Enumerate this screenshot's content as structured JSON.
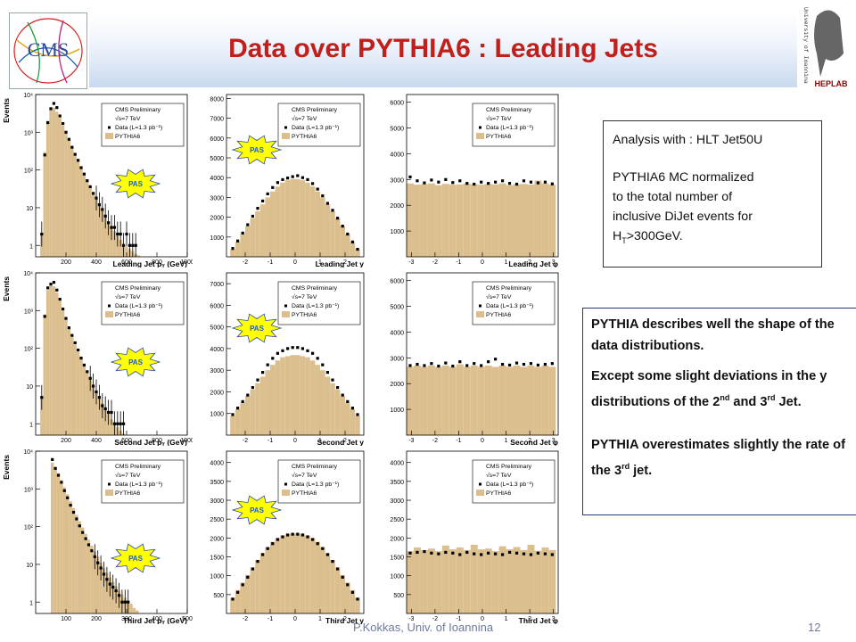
{
  "slide": {
    "title": "Data over PYTHIA6 : Leading Jets",
    "footer": "P.Kokkas, Univ. of Ioannina",
    "page_number": "12",
    "logo_left_text": "CMS",
    "logo_right_text": "HEPLAB",
    "logo_right_caption": "University of Ioannina"
  },
  "notes": {
    "box1_line1": "Analysis with : HLT Jet50U",
    "box1_line2": "PYTHIA6 MC normalized",
    "box1_line3": "to the total number of",
    "box1_line4": "inclusive DiJet events for",
    "box1_line5_pre": "H",
    "box1_line5_sub": "T",
    "box1_line5_post": ">300GeV.",
    "box2_p1": "PYTHIA describes well the shape of the data distributions.",
    "box2_p2_a": "Except some slight deviations in the y distributions of the 2",
    "box2_p2_sup1": "nd",
    "box2_p2_b": " and 3",
    "box2_p2_sup2": "rd",
    "box2_p2_c": " Jet.",
    "box2_p3_a": "PYTHIA overestimates slightly the rate of the 3",
    "box2_p3_sup": "rd",
    "box2_p3_b": " jet."
  },
  "legend": {
    "header": "CMS Preliminary",
    "energy": "√s=7 TeV",
    "data": "Data (L=1.3 pb⁻¹)",
    "mc": "PYTHIA6"
  },
  "badge": "PAS",
  "colors": {
    "mc_fill": "#dcbf8f",
    "data": "#000000",
    "badge": "#ffff00",
    "badge_text": "#1a5fbf",
    "title": "#c0201c"
  },
  "chart_data": [
    {
      "id": "pt1",
      "type": "bar",
      "ylabel": "Events",
      "xlabel": "Leading Jet p",
      "xlabel_sub": "T",
      "xlabel_unit": " (GeV)",
      "log": true,
      "xlim": [
        0,
        1000
      ],
      "ylim": [
        0.5,
        10000
      ],
      "yticks": [
        1,
        10,
        100,
        1000,
        10000
      ],
      "ytick_labels": [
        "1",
        "10",
        "10²",
        "10³",
        "10⁴"
      ],
      "xticks": [
        200,
        400,
        600,
        800,
        1000
      ],
      "badge": true,
      "x": [
        40,
        60,
        80,
        100,
        120,
        140,
        160,
        180,
        200,
        220,
        240,
        260,
        280,
        300,
        320,
        340,
        360,
        380,
        400,
        420,
        440,
        460,
        480,
        500,
        520,
        540,
        560,
        580,
        600,
        620,
        640,
        660,
        680,
        700,
        720
      ],
      "mc": [
        2,
        300,
        2000,
        4000,
        4500,
        3500,
        2400,
        1500,
        950,
        600,
        390,
        250,
        165,
        110,
        75,
        50,
        34,
        24,
        17,
        12,
        8.5,
        6,
        4.3,
        3.2,
        2.4,
        1.8,
        1.4,
        1.1,
        0.9,
        0.8,
        0.7,
        0.6,
        0.55,
        0.5,
        0.5
      ],
      "data": [
        2,
        250,
        1800,
        4200,
        5800,
        4500,
        2700,
        1700,
        1000,
        650,
        400,
        260,
        180,
        115,
        78,
        52,
        36,
        24,
        18,
        12,
        9,
        6,
        4,
        3,
        3,
        2,
        2,
        1,
        2,
        1,
        1,
        1,
        null,
        null,
        null
      ]
    },
    {
      "id": "y1",
      "type": "bar",
      "xlabel": "Leading Jet y",
      "log": false,
      "xlim": [
        -2.75,
        2.75
      ],
      "ylim": [
        0,
        8200
      ],
      "yticks": [
        1000,
        2000,
        3000,
        4000,
        5000,
        6000,
        7000,
        8000
      ],
      "xticks": [
        -2,
        -1,
        0,
        1,
        2
      ],
      "badge": true,
      "x": [
        -2.5,
        -2.3,
        -2.1,
        -1.9,
        -1.7,
        -1.5,
        -1.3,
        -1.1,
        -0.9,
        -0.7,
        -0.5,
        -0.3,
        -0.1,
        0.1,
        0.3,
        0.5,
        0.7,
        0.9,
        1.1,
        1.3,
        1.5,
        1.7,
        1.9,
        2.1,
        2.3,
        2.5
      ],
      "mc": [
        380,
        750,
        1150,
        1550,
        1950,
        2300,
        2650,
        3000,
        3300,
        3550,
        3750,
        3870,
        3930,
        3930,
        3870,
        3750,
        3550,
        3300,
        3000,
        2650,
        2300,
        1950,
        1550,
        1150,
        750,
        380
      ],
      "data": [
        420,
        800,
        1200,
        1620,
        2050,
        2450,
        2820,
        3180,
        3500,
        3750,
        3900,
        3980,
        4050,
        4100,
        4000,
        3900,
        3700,
        3420,
        3080,
        2700,
        2350,
        1950,
        1550,
        1150,
        750,
        380
      ]
    },
    {
      "id": "phi1",
      "type": "bar",
      "xlabel": "Leading Jet φ",
      "log": false,
      "xlim": [
        -3.2,
        3.2
      ],
      "ylim": [
        0,
        6300
      ],
      "yticks": [
        1000,
        2000,
        3000,
        4000,
        5000,
        6000
      ],
      "xticks": [
        -3,
        -2,
        -1,
        0,
        1,
        2,
        3
      ],
      "badge": false,
      "x": [
        -3.05,
        -2.75,
        -2.45,
        -2.15,
        -1.85,
        -1.55,
        -1.25,
        -0.95,
        -0.65,
        -0.35,
        -0.05,
        0.25,
        0.55,
        0.85,
        1.15,
        1.45,
        1.75,
        2.05,
        2.35,
        2.65,
        2.95
      ],
      "mc": [
        2850,
        2800,
        2820,
        2850,
        2780,
        2830,
        2800,
        2810,
        2850,
        2820,
        2800,
        2830,
        2810,
        2850,
        2780,
        2820,
        2830,
        2800,
        2960,
        2850,
        2800
      ],
      "data": [
        3100,
        2950,
        2870,
        2980,
        2900,
        3000,
        2880,
        2950,
        2850,
        2820,
        2900,
        2850,
        2900,
        2950,
        2850,
        2820,
        2950,
        2900,
        2870,
        2900,
        2830
      ]
    },
    {
      "id": "pt2",
      "type": "bar",
      "ylabel": "Events",
      "xlabel": "Second Jet p",
      "xlabel_sub": "T",
      "xlabel_unit": " (GeV)",
      "log": true,
      "xlim": [
        0,
        1000
      ],
      "ylim": [
        0.5,
        10000
      ],
      "yticks": [
        1,
        10,
        100,
        1000,
        10000
      ],
      "ytick_labels": [
        "1",
        "10",
        "10²",
        "10³",
        "10⁴"
      ],
      "xticks": [
        200,
        400,
        600,
        800,
        1000
      ],
      "badge": true,
      "x": [
        40,
        60,
        80,
        100,
        120,
        140,
        160,
        180,
        200,
        220,
        240,
        260,
        280,
        300,
        320,
        340,
        360,
        380,
        400,
        420,
        440,
        460,
        480,
        500,
        520,
        540,
        560,
        580,
        600
      ],
      "mc": [
        5,
        800,
        3500,
        4500,
        4400,
        3000,
        1800,
        1000,
        580,
        330,
        200,
        125,
        80,
        52,
        34,
        23,
        15,
        10,
        7,
        5,
        3.5,
        2.5,
        1.8,
        1.3,
        1,
        0.8,
        0.65,
        0.55,
        0.5
      ],
      "data": [
        5,
        700,
        4000,
        5000,
        5600,
        3500,
        2000,
        1100,
        620,
        350,
        220,
        140,
        90,
        55,
        36,
        24,
        16,
        10,
        7,
        5,
        3,
        2.5,
        2,
        2,
        1,
        1,
        1,
        1,
        null
      ]
    },
    {
      "id": "y2",
      "type": "bar",
      "xlabel": "Second Jet y",
      "log": false,
      "xlim": [
        -2.75,
        2.75
      ],
      "ylim": [
        0,
        7500
      ],
      "yticks": [
        1000,
        2000,
        3000,
        4000,
        5000,
        6000,
        7000
      ],
      "xticks": [
        -2,
        -1,
        0,
        1,
        2
      ],
      "badge": true,
      "x": [
        -2.5,
        -2.3,
        -2.1,
        -1.9,
        -1.7,
        -1.5,
        -1.3,
        -1.1,
        -0.9,
        -0.7,
        -0.5,
        -0.3,
        -0.1,
        0.1,
        0.3,
        0.5,
        0.7,
        0.9,
        1.1,
        1.3,
        1.5,
        1.7,
        1.9,
        2.1,
        2.3,
        2.5
      ],
      "mc": [
        900,
        1200,
        1500,
        1800,
        2100,
        2400,
        2700,
        3000,
        3250,
        3450,
        3600,
        3650,
        3700,
        3700,
        3650,
        3600,
        3450,
        3250,
        3000,
        2700,
        2400,
        2100,
        1800,
        1500,
        1200,
        900
      ],
      "data": [
        950,
        1250,
        1550,
        1850,
        2200,
        2550,
        2900,
        3250,
        3550,
        3780,
        3900,
        4000,
        4050,
        4050,
        4000,
        3900,
        3780,
        3550,
        3250,
        2900,
        2550,
        2200,
        1850,
        1550,
        1250,
        950
      ]
    },
    {
      "id": "phi2",
      "type": "bar",
      "xlabel": "Second Jet φ",
      "log": false,
      "xlim": [
        -3.2,
        3.2
      ],
      "ylim": [
        0,
        6300
      ],
      "yticks": [
        1000,
        2000,
        3000,
        4000,
        5000,
        6000
      ],
      "xticks": [
        -3,
        -2,
        -1,
        0,
        1,
        2,
        3
      ],
      "badge": false,
      "x": [
        -3.05,
        -2.75,
        -2.45,
        -2.15,
        -1.85,
        -1.55,
        -1.25,
        -0.95,
        -0.65,
        -0.35,
        -0.05,
        0.25,
        0.55,
        0.85,
        1.15,
        1.45,
        1.75,
        2.05,
        2.35,
        2.65,
        2.95
      ],
      "mc": [
        2650,
        2700,
        2650,
        2700,
        2650,
        2700,
        2650,
        2750,
        2650,
        2700,
        2650,
        2700,
        2650,
        2700,
        2650,
        2700,
        2650,
        2700,
        2650,
        2700,
        2650
      ],
      "data": [
        2700,
        2750,
        2700,
        2780,
        2680,
        2800,
        2680,
        2850,
        2700,
        2780,
        2700,
        2850,
        2950,
        2750,
        2720,
        2800,
        2750,
        2780,
        2720,
        2750,
        2780
      ]
    },
    {
      "id": "pt3",
      "type": "bar",
      "ylabel": "Events",
      "xlabel": "Third Jet p",
      "xlabel_sub": "T",
      "xlabel_unit": " (GeV)",
      "log": true,
      "xlim": [
        0,
        500
      ],
      "ylim": [
        0.5,
        10000
      ],
      "yticks": [
        1,
        10,
        100,
        1000,
        10000
      ],
      "ytick_labels": [
        "1",
        "10",
        "10²",
        "10³",
        "10⁴"
      ],
      "xticks": [
        100,
        200,
        300,
        400,
        500
      ],
      "badge": true,
      "x": [
        55,
        65,
        75,
        85,
        95,
        105,
        115,
        125,
        135,
        145,
        155,
        165,
        175,
        185,
        195,
        205,
        215,
        225,
        235,
        245,
        255,
        265,
        275,
        285,
        295,
        305,
        315,
        325,
        335
      ],
      "mc": [
        5000,
        3800,
        2600,
        1700,
        1100,
        720,
        470,
        310,
        205,
        140,
        95,
        65,
        45,
        31,
        22,
        16,
        11,
        8,
        6,
        4.5,
        3.4,
        2.6,
        2,
        1.6,
        1.3,
        1.1,
        0.9,
        0.7,
        0.6
      ],
      "data": [
        6000,
        3500,
        2300,
        1500,
        900,
        580,
        370,
        240,
        160,
        105,
        70,
        48,
        33,
        23,
        16,
        11,
        8,
        5.5,
        4,
        3,
        2.5,
        2,
        1.5,
        1,
        1,
        1,
        null,
        null,
        null
      ]
    },
    {
      "id": "y3",
      "type": "bar",
      "xlabel": "Third Jet y",
      "log": false,
      "xlim": [
        -2.75,
        2.75
      ],
      "ylim": [
        0,
        4300
      ],
      "yticks": [
        500,
        1000,
        1500,
        2000,
        2500,
        3000,
        3500,
        4000
      ],
      "xticks": [
        -2,
        -1,
        0,
        1,
        2
      ],
      "badge": true,
      "x": [
        -2.5,
        -2.3,
        -2.1,
        -1.9,
        -1.7,
        -1.5,
        -1.3,
        -1.1,
        -0.9,
        -0.7,
        -0.5,
        -0.3,
        -0.1,
        0.1,
        0.3,
        0.5,
        0.7,
        0.9,
        1.1,
        1.3,
        1.5,
        1.7,
        1.9,
        2.1,
        2.3,
        2.5
      ],
      "mc": [
        420,
        620,
        820,
        1020,
        1220,
        1420,
        1600,
        1760,
        1900,
        2000,
        2070,
        2110,
        2120,
        2120,
        2110,
        2070,
        2000,
        1900,
        1760,
        1600,
        1420,
        1220,
        1020,
        820,
        620,
        420
      ],
      "data": [
        380,
        560,
        760,
        960,
        1180,
        1380,
        1560,
        1720,
        1850,
        1960,
        2030,
        2080,
        2100,
        2100,
        2080,
        2030,
        1960,
        1850,
        1720,
        1560,
        1380,
        1180,
        960,
        760,
        560,
        380
      ]
    },
    {
      "id": "phi3",
      "type": "bar",
      "xlabel": "Third Jet φ",
      "log": false,
      "xlim": [
        -3.2,
        3.2
      ],
      "ylim": [
        0,
        4300
      ],
      "yticks": [
        500,
        1000,
        1500,
        2000,
        2500,
        3000,
        3500,
        4000
      ],
      "xticks": [
        -3,
        -2,
        -1,
        0,
        1,
        2,
        3
      ],
      "badge": false,
      "x": [
        -3.05,
        -2.75,
        -2.45,
        -2.15,
        -1.85,
        -1.55,
        -1.25,
        -0.95,
        -0.65,
        -0.35,
        -0.05,
        0.25,
        0.55,
        0.85,
        1.15,
        1.45,
        1.75,
        2.05,
        2.35,
        2.65,
        2.95
      ],
      "mc": [
        1650,
        1750,
        1680,
        1720,
        1650,
        1800,
        1700,
        1750,
        1680,
        1820,
        1700,
        1720,
        1650,
        1780,
        1700,
        1760,
        1680,
        1820,
        1660,
        1750,
        1680
      ],
      "data": [
        1600,
        1620,
        1640,
        1600,
        1580,
        1620,
        1600,
        1560,
        1620,
        1580,
        1560,
        1600,
        1580,
        1560,
        1620,
        1600,
        1580,
        1560,
        1600,
        1580,
        1560
      ]
    }
  ]
}
